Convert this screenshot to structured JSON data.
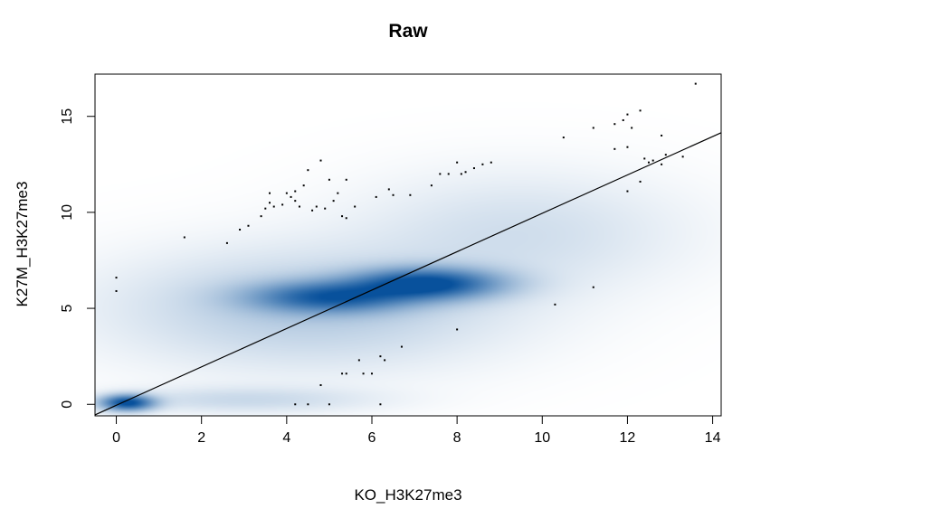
{
  "chart_data": {
    "type": "scatter",
    "style": "smoothed-density-scatter",
    "title": "Raw",
    "xlabel": "KO_H3K27me3",
    "ylabel": "K27M_H3K27me3",
    "xlim": [
      -0.5,
      14.2
    ],
    "ylim": [
      -0.6,
      17.2
    ],
    "xticks": [
      0,
      2,
      4,
      6,
      8,
      10,
      12,
      14
    ],
    "yticks": [
      0,
      5,
      10,
      15
    ],
    "density_color": "#08519c",
    "point_color": "#000000",
    "reference_line": {
      "x": [
        -0.5,
        14.2
      ],
      "y": [
        -0.55,
        14.15
      ]
    },
    "density_components": [
      {
        "x": 0.25,
        "y": 0.1,
        "sx": 0.42,
        "sy": 0.28,
        "w": 1.0
      },
      {
        "x": 5.0,
        "y": 5.6,
        "sx": 1.25,
        "sy": 0.55,
        "w": 0.75
      },
      {
        "x": 7.3,
        "y": 6.3,
        "sx": 1.15,
        "sy": 0.55,
        "w": 0.95
      },
      {
        "x": 4.5,
        "y": 5.0,
        "sx": 3.0,
        "sy": 2.0,
        "w": 0.22
      },
      {
        "x": 9.5,
        "y": 9.0,
        "sx": 2.5,
        "sy": 2.0,
        "w": 0.12
      },
      {
        "x": 3.0,
        "y": 0.25,
        "sx": 2.0,
        "sy": 0.45,
        "w": 0.14
      }
    ],
    "outlier_points": [
      [
        0.0,
        6.6
      ],
      [
        0.0,
        5.9
      ],
      [
        1.6,
        8.7
      ],
      [
        2.6,
        8.4
      ],
      [
        2.9,
        9.1
      ],
      [
        3.1,
        9.3
      ],
      [
        3.4,
        9.8
      ],
      [
        3.5,
        10.2
      ],
      [
        3.6,
        10.5
      ],
      [
        3.6,
        11.0
      ],
      [
        3.7,
        10.3
      ],
      [
        3.9,
        10.4
      ],
      [
        4.0,
        11.0
      ],
      [
        4.1,
        10.8
      ],
      [
        4.2,
        10.6
      ],
      [
        4.2,
        11.1
      ],
      [
        4.3,
        10.3
      ],
      [
        4.4,
        11.4
      ],
      [
        4.5,
        12.2
      ],
      [
        4.6,
        10.1
      ],
      [
        4.7,
        10.3
      ],
      [
        4.8,
        12.7
      ],
      [
        4.9,
        10.2
      ],
      [
        5.0,
        11.7
      ],
      [
        5.1,
        10.6
      ],
      [
        5.2,
        11.0
      ],
      [
        5.3,
        9.8
      ],
      [
        5.4,
        9.7
      ],
      [
        5.4,
        11.7
      ],
      [
        5.6,
        10.3
      ],
      [
        6.1,
        10.8
      ],
      [
        6.4,
        11.2
      ],
      [
        6.5,
        10.9
      ],
      [
        6.9,
        10.9
      ],
      [
        7.4,
        11.4
      ],
      [
        7.6,
        12.0
      ],
      [
        7.8,
        12.0
      ],
      [
        8.0,
        12.6
      ],
      [
        8.1,
        12.0
      ],
      [
        8.2,
        12.1
      ],
      [
        8.4,
        12.3
      ],
      [
        8.6,
        12.5
      ],
      [
        8.8,
        12.6
      ],
      [
        10.5,
        13.9
      ],
      [
        11.2,
        14.4
      ],
      [
        11.7,
        14.6
      ],
      [
        11.9,
        14.8
      ],
      [
        12.0,
        15.1
      ],
      [
        12.1,
        14.4
      ],
      [
        12.3,
        15.3
      ],
      [
        12.0,
        13.4
      ],
      [
        11.7,
        13.3
      ],
      [
        12.4,
        12.8
      ],
      [
        12.5,
        12.6
      ],
      [
        12.6,
        12.7
      ],
      [
        12.8,
        14.0
      ],
      [
        12.9,
        13.0
      ],
      [
        13.3,
        12.9
      ],
      [
        12.8,
        12.5
      ],
      [
        12.3,
        11.6
      ],
      [
        12.0,
        11.1
      ],
      [
        13.6,
        16.7
      ],
      [
        11.2,
        6.1
      ],
      [
        10.3,
        5.2
      ],
      [
        8.0,
        3.9
      ],
      [
        6.7,
        3.0
      ],
      [
        6.2,
        2.5
      ],
      [
        6.3,
        2.3
      ],
      [
        5.7,
        2.3
      ],
      [
        5.8,
        1.6
      ],
      [
        5.3,
        1.6
      ],
      [
        5.4,
        1.6
      ],
      [
        6.0,
        1.6
      ],
      [
        4.8,
        1.0
      ],
      [
        4.2,
        0.0
      ],
      [
        4.5,
        0.0
      ],
      [
        5.0,
        0.0
      ],
      [
        6.2,
        0.0
      ]
    ]
  }
}
